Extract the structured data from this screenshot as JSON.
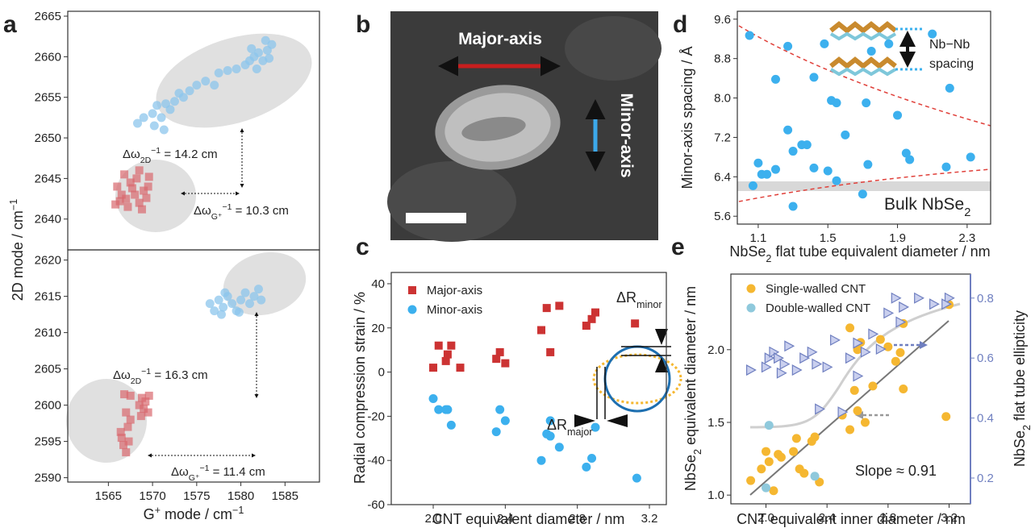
{
  "chart_data": [
    {
      "type": "scatter",
      "panel_label": "a",
      "y_label": {
        "text": "2D mode / cm",
        "sup": "−1"
      },
      "xlim": [
        1560.4,
        1588.9
      ],
      "ylim": [
        2636.2,
        2665.6
      ],
      "yticks": [
        2640,
        2645,
        2650,
        2655,
        2660,
        2665
      ],
      "series": [
        {
          "color": "#8cc6ec",
          "marker": "circle",
          "opacity": 0.75,
          "x": [
            1568.3,
            1569,
            1570,
            1570.5,
            1571,
            1571.5,
            1572,
            1572.5,
            1573,
            1573.5,
            1574.2,
            1575,
            1576,
            1577,
            1577.5,
            1578.5,
            1579.5,
            1580.5,
            1581,
            1581.5,
            1582,
            1582.5,
            1583,
            1583.5,
            1582.8,
            1581.8,
            1583.2,
            1581.2,
            1571.3,
            1570.2
          ],
          "values": [
            2651.8,
            2652.5,
            2653,
            2654,
            2652.5,
            2654.2,
            2653.5,
            2654.5,
            2655.5,
            2655,
            2655.8,
            2656.5,
            2657,
            2656.5,
            2658,
            2658.3,
            2658.5,
            2659,
            2659.5,
            2660,
            2660.5,
            2659.5,
            2660.8,
            2661.5,
            2662,
            2658.5,
            2659.8,
            2661,
            2651,
            2651.5
          ]
        },
        {
          "color": "#d9686e",
          "marker": "square",
          "opacity": 0.7,
          "x": [
            1566,
            1566.5,
            1567,
            1567.5,
            1568,
            1568.5,
            1569,
            1569.5,
            1566.8,
            1568.2,
            1565.8,
            1567.2,
            1568.8,
            1569.3,
            1566.3,
            1567.7,
            1568.5,
            1569.6
          ],
          "values": [
            2644,
            2643,
            2642.5,
            2644.5,
            2643,
            2642,
            2643.5,
            2644,
            2645.5,
            2645,
            2641.8,
            2641.5,
            2641.2,
            2642.6,
            2642.2,
            2643.8,
            2646,
            2645.2
          ]
        }
      ],
      "annotations": [
        {
          "text": "Δω",
          "sub": "2D",
          "tail": " = 14.2 cm",
          "sup": "−1"
        },
        {
          "text": "Δω",
          "sub": "G⁺",
          "tail": " = 10.3 cm",
          "sup": "−1"
        }
      ]
    },
    {
      "type": "scatter",
      "x_label": {
        "text": "G",
        "sup": "+",
        "tail": " mode / cm",
        "sup2": "−1"
      },
      "xlim": [
        1560.4,
        1588.9
      ],
      "ylim": [
        2589.4,
        2621.4
      ],
      "xticks": [
        1565,
        1570,
        1575,
        1580,
        1585
      ],
      "yticks": [
        2590,
        2595,
        2600,
        2605,
        2610,
        2615,
        2620
      ],
      "series": [
        {
          "color": "#8cc6ec",
          "marker": "circle",
          "opacity": 0.75,
          "x": [
            1576.5,
            1577,
            1577.5,
            1578,
            1578.5,
            1579,
            1579.5,
            1580,
            1580.5,
            1581,
            1581.5,
            1582,
            1582.3,
            1577.8,
            1579.8,
            1578.2
          ],
          "values": [
            2614,
            2613,
            2614.5,
            2613.5,
            2615,
            2614,
            2613,
            2614.5,
            2615.5,
            2614,
            2615,
            2616,
            2614.5,
            2612.5,
            2612.8,
            2615.5
          ]
        },
        {
          "color": "#d9686e",
          "marker": "square",
          "opacity": 0.7,
          "x": [
            1566.8,
            1567,
            1567.2,
            1567.5,
            1566.5,
            1566.7,
            1567.3,
            1567,
            1566.4,
            1568.5,
            1568.8,
            1569.2,
            1569.5,
            1569,
            1569.6,
            1568.7,
            1567.5
          ],
          "values": [
            2601.5,
            2599,
            2597,
            2598,
            2595.5,
            2594.5,
            2595,
            2593.5,
            2596.3,
            2600,
            2601,
            2600.5,
            2599,
            2599.5,
            2601.3,
            2598.5,
            2601.3
          ]
        }
      ],
      "annotations": [
        {
          "text": "Δω",
          "sub": "2D",
          "tail": " = 16.3 cm",
          "sup": "−1"
        },
        {
          "text": "Δω",
          "sub": "G⁺",
          "tail": " = 11.4 cm",
          "sup": "−1"
        }
      ]
    },
    {
      "type": "scatter",
      "panel_label": "c",
      "x_label": "CNT equivalent diameter / nm",
      "y_label": "Radial compression strain / %",
      "xlim": [
        1.767,
        3.294
      ],
      "ylim": [
        -60,
        45.1
      ],
      "xticks": [
        {
          "value": 2,
          "label": "2.0"
        },
        2.4,
        2.8,
        3.2
      ],
      "yticks": [
        -60,
        -40,
        -20,
        0,
        20,
        40
      ],
      "legend": "upper left",
      "series": [
        {
          "name": "Major-axis",
          "color": "#cc3333",
          "marker": "square",
          "opacity": 1,
          "x": [
            2.0,
            2.03,
            2.07,
            2.08,
            2.1,
            2.15,
            2.35,
            2.37,
            2.4,
            2.6,
            2.63,
            2.65,
            2.7,
            2.85,
            2.88,
            2.9,
            3.12
          ],
          "values": [
            2,
            12,
            5,
            8,
            12,
            2,
            6,
            9,
            4,
            19,
            29,
            9,
            30,
            21,
            24,
            27,
            22
          ]
        },
        {
          "name": "Minor-axis",
          "color": "#3cb0ee",
          "marker": "circle",
          "opacity": 1,
          "x": [
            2.0,
            2.03,
            2.07,
            2.08,
            2.1,
            2.35,
            2.37,
            2.4,
            2.6,
            2.63,
            2.65,
            2.7,
            2.65,
            2.85,
            2.88,
            2.9,
            3.13
          ],
          "values": [
            -12,
            -17,
            -17,
            -17,
            -24,
            -27,
            -17,
            -22,
            -40,
            -28,
            -29,
            -34,
            -22,
            -43,
            -39,
            -25,
            -48
          ]
        }
      ],
      "annotations": [
        {
          "text": "ΔR",
          "sub": "major"
        },
        {
          "text": "ΔR",
          "sub": "minor"
        }
      ]
    },
    {
      "type": "scatter",
      "panel_label": "d",
      "x_label": {
        "text": "NbSe",
        "sub": "2",
        "tail": " flat tube equivalent diameter / nm"
      },
      "y_label": "Minor-axis spacing / Å",
      "xlim": [
        0.98,
        2.435
      ],
      "ylim": [
        5.44,
        9.76
      ],
      "xticks": [
        1.1,
        1.5,
        1.9,
        2.3
      ],
      "yticks": [
        5.6,
        6.4,
        7.2,
        {
          "value": 8,
          "label": "8.0"
        },
        8.8,
        9.6
      ],
      "series": [
        {
          "color": "#3cb0ee",
          "marker": "circle",
          "opacity": 1,
          "x": [
            1.05,
            1.07,
            1.1,
            1.12,
            1.15,
            1.2,
            1.2,
            1.27,
            1.27,
            1.3,
            1.3,
            1.35,
            1.38,
            1.42,
            1.42,
            1.48,
            1.5,
            1.52,
            1.55,
            1.55,
            1.6,
            1.7,
            1.72,
            1.73,
            1.75,
            1.85,
            1.9,
            1.95,
            1.97,
            2.1,
            2.18,
            2.2,
            2.32
          ],
          "values": [
            9.27,
            6.22,
            6.68,
            6.45,
            6.45,
            6.55,
            8.38,
            7.35,
            9.05,
            6.92,
            5.8,
            7.05,
            7.05,
            6.58,
            8.42,
            9.1,
            6.52,
            7.95,
            7.9,
            6.32,
            7.25,
            6.05,
            7.9,
            6.65,
            8.95,
            9.1,
            7.65,
            6.88,
            6.75,
            9.3,
            6.6,
            8.2,
            6.8
          ]
        }
      ],
      "annotations": [
        {
          "text": "Bulk NbSe",
          "sub": "2"
        },
        {
          "text": "Nb−Nb"
        },
        {
          "text": "spacing"
        }
      ]
    },
    {
      "type": "scatter",
      "panel_label": "e",
      "x_label": "CNT equivalent inner diameter / nm",
      "y_label": {
        "text": "NbSe",
        "sub": "2",
        "tail": " equivalent diameter / nm"
      },
      "y2_label": {
        "text": "NbSe",
        "sub": "2",
        "tail": " flat tube ellipticity"
      },
      "y2_color": "#6f7fc0",
      "xlim": [
        1.77,
        3.34
      ],
      "ylim": [
        0.94,
        2.52
      ],
      "y2lim": [
        0.114,
        0.88
      ],
      "xticks": [
        {
          "value": 2,
          "label": "2.0"
        },
        2.4,
        2.8,
        3.2
      ],
      "yticks": [
        {
          "value": 1,
          "label": "1.0"
        },
        1.5,
        {
          "value": 2,
          "label": "2.0"
        }
      ],
      "y2ticks": [
        0.2,
        0.4,
        0.6,
        0.8
      ],
      "legend": "upper left",
      "series": [
        {
          "name": "Single-walled CNT",
          "color": "#f5b731",
          "marker": "circle",
          "opacity": 1,
          "x": [
            1.9,
            1.97,
            2.0,
            2.02,
            2.05,
            2.08,
            2.1,
            2.18,
            2.2,
            2.22,
            2.25,
            2.3,
            2.32,
            2.35,
            2.5,
            2.55,
            2.58,
            2.6,
            2.62,
            2.65,
            2.7,
            2.75,
            2.8,
            2.85,
            2.88,
            2.9,
            2.9,
            2.55,
            2.6,
            3.18,
            3.2
          ],
          "values": [
            1.1,
            1.18,
            1.3,
            1.23,
            1.03,
            1.28,
            1.26,
            1.3,
            1.39,
            1.18,
            1.15,
            1.37,
            1.4,
            1.09,
            1.55,
            1.45,
            1.72,
            1.58,
            2.05,
            1.5,
            1.75,
            2.07,
            2.02,
            1.92,
            1.98,
            2.18,
            1.73,
            2.15,
            2.0,
            1.54,
            2.31
          ]
        },
        {
          "name": "Double-walled CNT",
          "color": "#8fc9dc",
          "marker": "circle",
          "opacity": 1,
          "x": [
            2.0,
            2.02,
            2.32
          ],
          "values": [
            1.05,
            1.48,
            1.13
          ]
        },
        {
          "color": "#6f7fc0",
          "marker": "triangle",
          "opacity": 1,
          "axis": "y2",
          "x": [
            1.9,
            2.0,
            2.02,
            2.05,
            2.08,
            2.1,
            2.12,
            2.15,
            2.2,
            2.25,
            2.3,
            2.33,
            2.35,
            2.4,
            2.45,
            2.5,
            2.55,
            2.6,
            2.6,
            2.65,
            2.7,
            2.75,
            2.8,
            2.85,
            2.88,
            2.9,
            3.0,
            3.1,
            3.2,
            3.18
          ],
          "values": [
            0.56,
            0.57,
            0.6,
            0.62,
            0.6,
            0.55,
            0.58,
            0.64,
            0.56,
            0.6,
            0.62,
            0.58,
            0.43,
            0.57,
            0.66,
            0.42,
            0.6,
            0.65,
            0.54,
            0.62,
            0.68,
            0.63,
            0.75,
            0.8,
            0.72,
            0.77,
            0.8,
            0.78,
            0.8,
            0.78
          ]
        }
      ],
      "annotations": [
        {
          "text": "Slope ≈ 0.91"
        }
      ]
    }
  ],
  "image_panel": {
    "panel_label": "b",
    "major_label": "Major-axis",
    "minor_label": "Minor-axis"
  }
}
